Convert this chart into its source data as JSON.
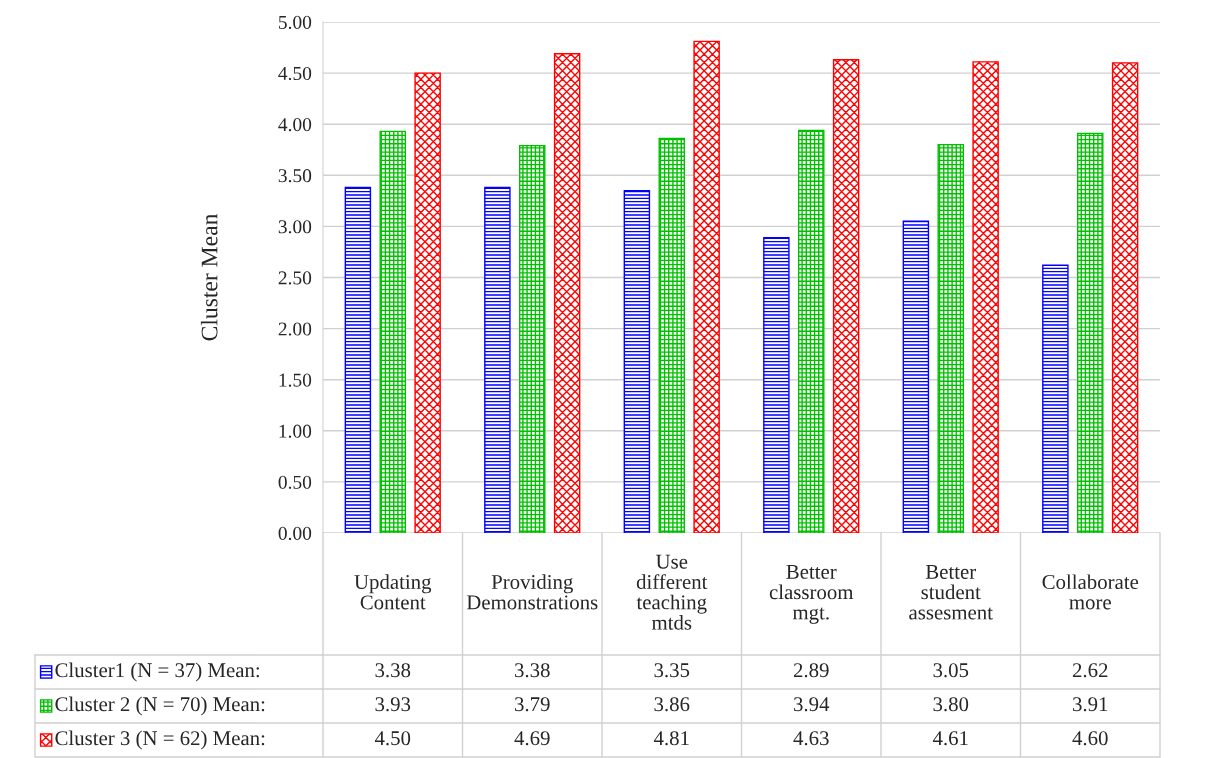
{
  "chart_data": {
    "type": "bar",
    "ylabel": "Cluster Mean",
    "categories": [
      "Updating Content",
      "Providing Demonstrations",
      "Use different teaching mtds",
      "Better classroom mgt.",
      "Better student assesment",
      "Collaborate more"
    ],
    "series": [
      {
        "name": "Cluster1 (N = 37) Mean:",
        "color": "#0000ff",
        "values": [
          3.38,
          3.38,
          3.35,
          2.89,
          3.05,
          2.62
        ],
        "value_labels": [
          "3.38",
          "3.38",
          "3.35",
          "2.89",
          "3.05",
          "2.62"
        ]
      },
      {
        "name": "Cluster 2 (N = 70) Mean:",
        "color": "#00c000",
        "values": [
          3.93,
          3.79,
          3.86,
          3.94,
          3.8,
          3.91
        ],
        "value_labels": [
          "3.93",
          "3.79",
          "3.86",
          "3.94",
          "3.80",
          "3.91"
        ]
      },
      {
        "name": "Cluster 3 (N = 62) Mean:",
        "color": "#ff0000",
        "values": [
          4.5,
          4.69,
          4.81,
          4.63,
          4.61,
          4.6
        ],
        "value_labels": [
          "4.50",
          "4.69",
          "4.81",
          "4.63",
          "4.61",
          "4.60"
        ]
      }
    ],
    "ylim": [
      0,
      5
    ],
    "yticks": [
      {
        "value": 0,
        "label": "0.00"
      },
      {
        "value": 0.5,
        "label": "0.50"
      },
      {
        "value": 1,
        "label": "1.00"
      },
      {
        "value": 1.5,
        "label": "1.50"
      },
      {
        "value": 2,
        "label": "2.00"
      },
      {
        "value": 2.5,
        "label": "2.50"
      },
      {
        "value": 3,
        "label": "3.00"
      },
      {
        "value": 3.5,
        "label": "3.50"
      },
      {
        "value": 4,
        "label": "4.00"
      },
      {
        "value": 4.5,
        "label": "4.50"
      },
      {
        "value": 5,
        "label": "5.00"
      }
    ],
    "grid": "y",
    "legend": "bottom"
  }
}
